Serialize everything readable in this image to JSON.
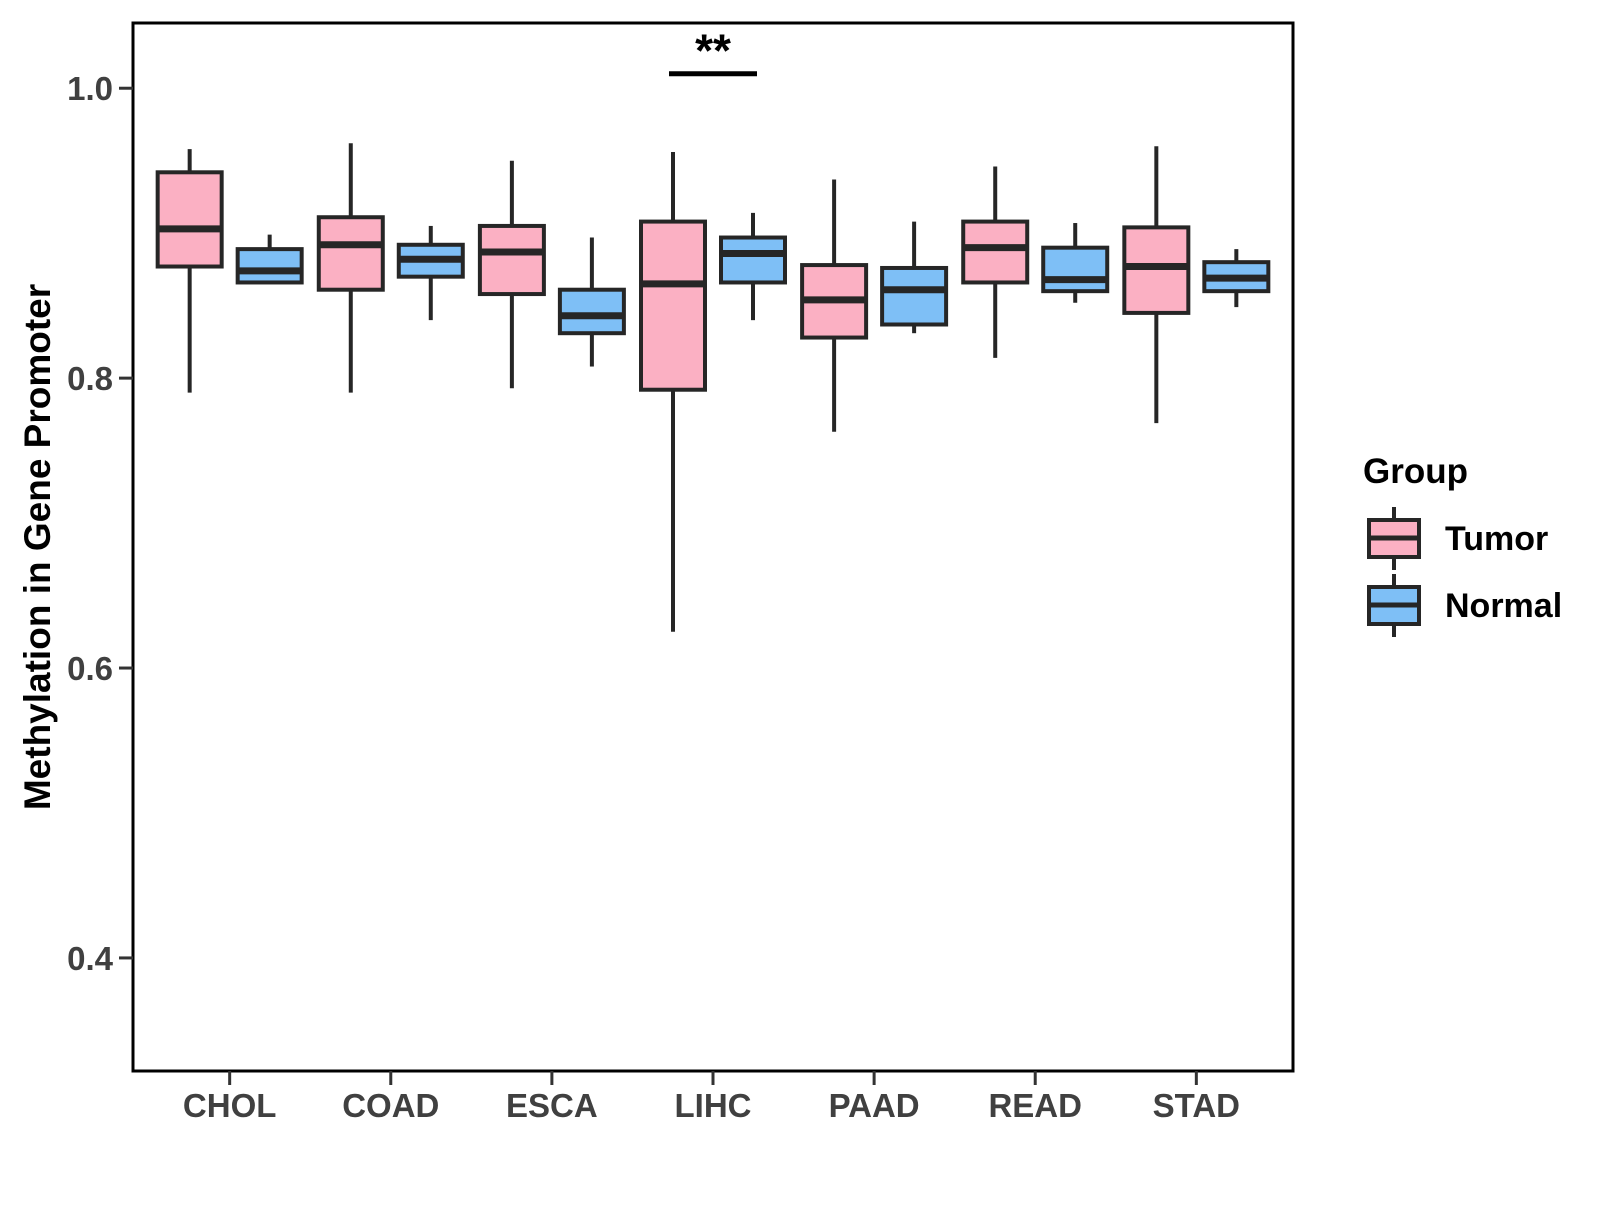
{
  "chart_data": {
    "type": "boxplot",
    "title": "",
    "xlabel": "",
    "ylabel": "Methylation in Gene Promoter",
    "categories": [
      "CHOL",
      "COAD",
      "ESCA",
      "LIHC",
      "PAAD",
      "READ",
      "STAD"
    ],
    "y_axis": {
      "range": [
        0.322,
        1.045
      ],
      "ticks": [
        {
          "value": 0.4,
          "label": "0.4"
        },
        {
          "value": 0.6,
          "label": "0.6"
        },
        {
          "value": 0.8,
          "label": "0.8"
        },
        {
          "value": 1.0,
          "label": "1.0"
        }
      ],
      "grid": "off"
    },
    "legend": {
      "title": "Group",
      "position": "right"
    },
    "series": [
      {
        "name": "Tumor",
        "fill": "#FBB0C3",
        "values": [
          {
            "category": "CHOL",
            "whisker_low": 0.79,
            "q1": 0.877,
            "median": 0.903,
            "q3": 0.942,
            "whisker_high": 0.958
          },
          {
            "category": "COAD",
            "whisker_low": 0.79,
            "q1": 0.861,
            "median": 0.892,
            "q3": 0.911,
            "whisker_high": 0.962
          },
          {
            "category": "ESCA",
            "whisker_low": 0.793,
            "q1": 0.858,
            "median": 0.887,
            "q3": 0.905,
            "whisker_high": 0.95
          },
          {
            "category": "LIHC",
            "whisker_low": 0.625,
            "q1": 0.792,
            "median": 0.865,
            "q3": 0.908,
            "whisker_high": 0.956
          },
          {
            "category": "PAAD",
            "whisker_low": 0.763,
            "q1": 0.828,
            "median": 0.854,
            "q3": 0.878,
            "whisker_high": 0.937
          },
          {
            "category": "READ",
            "whisker_low": 0.814,
            "q1": 0.866,
            "median": 0.89,
            "q3": 0.908,
            "whisker_high": 0.946
          },
          {
            "category": "STAD",
            "whisker_low": 0.769,
            "q1": 0.845,
            "median": 0.877,
            "q3": 0.904,
            "whisker_high": 0.96
          }
        ]
      },
      {
        "name": "Normal",
        "fill": "#7EBFF6",
        "values": [
          {
            "category": "CHOL",
            "whisker_low": 0.866,
            "q1": 0.866,
            "median": 0.874,
            "q3": 0.889,
            "whisker_high": 0.899
          },
          {
            "category": "COAD",
            "whisker_low": 0.84,
            "q1": 0.87,
            "median": 0.882,
            "q3": 0.892,
            "whisker_high": 0.905
          },
          {
            "category": "ESCA",
            "whisker_low": 0.808,
            "q1": 0.831,
            "median": 0.843,
            "q3": 0.861,
            "whisker_high": 0.897
          },
          {
            "category": "LIHC",
            "whisker_low": 0.84,
            "q1": 0.866,
            "median": 0.886,
            "q3": 0.897,
            "whisker_high": 0.914
          },
          {
            "category": "PAAD",
            "whisker_low": 0.831,
            "q1": 0.837,
            "median": 0.861,
            "q3": 0.876,
            "whisker_high": 0.908
          },
          {
            "category": "READ",
            "whisker_low": 0.852,
            "q1": 0.86,
            "median": 0.868,
            "q3": 0.89,
            "whisker_high": 0.907
          },
          {
            "category": "STAD",
            "whisker_low": 0.849,
            "q1": 0.86,
            "median": 0.869,
            "q3": 0.88,
            "whisker_high": 0.889
          }
        ]
      }
    ],
    "annotations": [
      {
        "type": "significance",
        "label": "**",
        "category": "LIHC",
        "y": 1.01
      }
    ],
    "colors": {
      "box_stroke": "#262626",
      "panel_border": "#000000",
      "axis_tick": "#333333",
      "tick_text": "#404040",
      "axis_title_text": "#000000",
      "annotation": "#000000",
      "background": "#ffffff"
    }
  }
}
